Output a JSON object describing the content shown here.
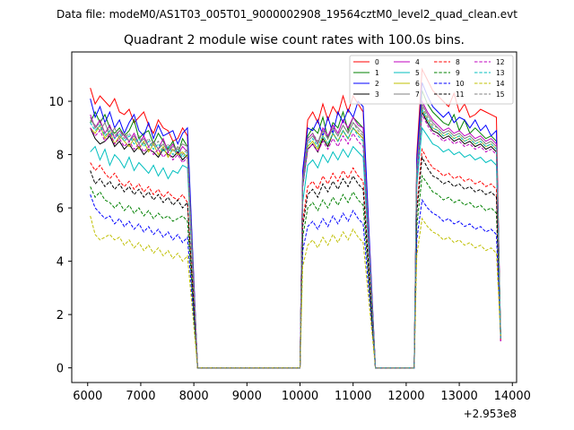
{
  "header": {
    "suptitle": "Data file: modeM0/AS1T03_005T01_9000002908_19564cztM0_level2_quad_clean.evt"
  },
  "chart_data": {
    "type": "line",
    "title": "Quadrant 2 module wise count rates with 100.0s bins.",
    "xlabel": "",
    "ylabel": "",
    "x_offset_label": "+2.953e8",
    "xlim": [
      5700,
      14080
    ],
    "ylim": [
      -0.55,
      11.85
    ],
    "x_ticks": [
      6000,
      7000,
      8000,
      9000,
      10000,
      11000,
      12000,
      13000,
      14000
    ],
    "y_ticks": [
      0,
      2,
      4,
      6,
      8,
      10
    ],
    "legend_location": "upper right",
    "legend_columns": 4,
    "segments": [
      {
        "start": 6050,
        "count": 21,
        "step": 91.5
      },
      {
        "start": 10050,
        "count": 13,
        "step": 95
      },
      {
        "start": 12200,
        "count": 16,
        "step": 100
      }
    ],
    "zero_gaps": [
      {
        "x": [
          8070,
          8250,
          10000
        ]
      },
      {
        "x": [
          11420,
          11600,
          12150
        ]
      }
    ],
    "series": [
      {
        "name": "0",
        "color": "#ff0000",
        "dash": "solid",
        "segA": [
          10.5,
          9.9,
          10.2,
          10.0,
          9.8,
          10.1,
          9.6,
          9.5,
          9.7,
          9.2,
          9.4,
          9.6,
          9.1,
          8.8,
          9.3,
          9.0,
          8.9,
          8.5,
          8.6,
          9.0,
          8.7
        ],
        "segB": [
          7.2,
          9.3,
          9.6,
          9.2,
          9.9,
          9.3,
          9.8,
          9.5,
          10.2,
          9.6,
          10.2,
          9.9,
          9.6
        ],
        "segC": [
          8.0,
          11.2,
          10.8,
          10.4,
          10.2,
          10.0,
          9.8,
          10.3,
          9.6,
          9.9,
          9.4,
          9.5,
          9.7,
          9.6,
          9.5,
          9.4
        ]
      },
      {
        "name": "1",
        "color": "#008000",
        "dash": "solid",
        "segA": [
          9.2,
          9.6,
          9.2,
          9.5,
          9.0,
          8.8,
          9.0,
          8.7,
          8.9,
          9.3,
          8.6,
          8.8,
          8.9,
          8.4,
          8.8,
          8.5,
          8.2,
          8.5,
          8.0,
          8.6,
          8.3
        ],
        "segB": [
          7.0,
          8.7,
          9.0,
          8.8,
          9.4,
          8.6,
          9.2,
          9.0,
          9.6,
          8.9,
          9.4,
          9.2,
          9.0
        ],
        "segC": [
          7.6,
          10.4,
          9.9,
          9.6,
          9.4,
          9.2,
          9.1,
          9.5,
          8.9,
          9.3,
          8.8,
          9.0,
          8.8,
          8.6,
          8.7,
          8.5
        ]
      },
      {
        "name": "2",
        "color": "#0000ff",
        "dash": "solid",
        "segA": [
          10.1,
          9.4,
          9.8,
          9.2,
          9.6,
          9.0,
          9.3,
          8.8,
          9.2,
          9.5,
          8.9,
          8.7,
          9.2,
          8.6,
          9.1,
          8.7,
          8.8,
          8.9,
          8.4,
          8.8,
          9.0
        ],
        "segB": [
          7.4,
          9.0,
          8.9,
          9.3,
          8.7,
          9.4,
          8.8,
          9.6,
          9.2,
          9.7,
          9.4,
          10.0,
          9.8
        ],
        "segC": [
          7.8,
          10.7,
          10.2,
          9.8,
          9.6,
          9.4,
          9.6,
          9.2,
          9.4,
          9.3,
          9.0,
          9.3,
          8.9,
          9.1,
          8.7,
          8.9
        ]
      },
      {
        "name": "3",
        "color": "#000000",
        "dash": "solid",
        "segA": [
          9.0,
          8.6,
          8.4,
          8.5,
          8.7,
          8.3,
          8.5,
          8.2,
          8.4,
          8.1,
          8.3,
          8.0,
          8.2,
          8.1,
          7.9,
          8.2,
          8.0,
          7.9,
          8.1,
          7.8,
          8.0
        ],
        "segB": [
          6.8,
          8.2,
          8.4,
          8.1,
          8.6,
          8.3,
          8.8,
          8.5,
          8.9,
          8.6,
          9.0,
          8.8,
          8.6
        ],
        "segC": [
          7.2,
          9.6,
          9.2,
          8.9,
          8.8,
          8.6,
          8.7,
          8.5,
          8.6,
          8.4,
          8.5,
          8.3,
          8.4,
          8.2,
          8.3,
          8.1
        ]
      },
      {
        "name": "4",
        "color": "#bf00bf",
        "dash": "solid",
        "segA": [
          9.5,
          9.0,
          9.3,
          8.8,
          9.1,
          8.6,
          8.9,
          8.7,
          8.5,
          8.8,
          8.4,
          8.7,
          8.3,
          8.5,
          8.2,
          8.6,
          8.1,
          8.4,
          8.0,
          8.3,
          8.1
        ],
        "segB": [
          7.1,
          8.6,
          8.8,
          8.4,
          9.0,
          8.7,
          9.1,
          8.8,
          9.3,
          9.0,
          9.4,
          9.1,
          9.0
        ],
        "segC": [
          7.5,
          10.0,
          9.6,
          9.3,
          9.1,
          8.9,
          9.0,
          8.8,
          8.9,
          8.7,
          8.8,
          8.6,
          8.7,
          8.5,
          8.6,
          8.4
        ]
      },
      {
        "name": "5",
        "color": "#00bfbf",
        "dash": "solid",
        "segA": [
          8.1,
          8.3,
          7.8,
          8.2,
          7.6,
          8.0,
          7.8,
          7.5,
          7.9,
          7.4,
          7.7,
          7.5,
          7.3,
          7.6,
          7.2,
          7.5,
          7.1,
          7.4,
          7.3,
          7.6,
          7.5
        ],
        "segB": [
          6.2,
          7.6,
          7.8,
          7.5,
          8.0,
          7.7,
          8.1,
          7.8,
          8.2,
          7.9,
          8.3,
          8.1,
          7.9
        ],
        "segC": [
          6.8,
          9.0,
          8.7,
          8.4,
          8.3,
          8.1,
          8.2,
          8.0,
          8.1,
          7.9,
          8.0,
          7.8,
          7.9,
          7.7,
          7.8,
          7.6
        ]
      },
      {
        "name": "6",
        "color": "#bfbf00",
        "dash": "solid",
        "segA": [
          9.0,
          8.8,
          9.1,
          8.6,
          8.9,
          8.4,
          8.7,
          8.5,
          8.3,
          8.6,
          8.2,
          8.5,
          8.1,
          8.4,
          8.0,
          8.3,
          7.9,
          8.2,
          8.0,
          8.1,
          7.9
        ],
        "segB": [
          6.9,
          8.3,
          8.5,
          8.2,
          8.7,
          8.4,
          8.8,
          8.5,
          8.9,
          8.6,
          9.0,
          8.8,
          8.6
        ],
        "segC": [
          7.3,
          9.7,
          9.3,
          9.0,
          8.9,
          8.7,
          8.8,
          8.6,
          8.7,
          8.5,
          8.6,
          8.4,
          8.5,
          8.3,
          8.4,
          8.2
        ]
      },
      {
        "name": "7",
        "color": "#808080",
        "dash": "solid",
        "segA": [
          9.3,
          9.1,
          8.9,
          9.2,
          8.7,
          9.0,
          8.6,
          8.8,
          8.5,
          8.7,
          8.4,
          8.6,
          8.3,
          8.5,
          8.2,
          8.4,
          8.1,
          8.3,
          8.2,
          8.4,
          8.3
        ],
        "segB": [
          7.0,
          8.5,
          8.7,
          8.4,
          8.9,
          8.6,
          9.0,
          8.7,
          9.1,
          8.8,
          9.2,
          9.0,
          8.8
        ],
        "segC": [
          7.4,
          9.9,
          9.5,
          9.2,
          9.0,
          8.8,
          8.9,
          8.7,
          8.8,
          8.6,
          8.7,
          8.5,
          8.6,
          8.4,
          8.5,
          8.3
        ]
      },
      {
        "name": "8",
        "color": "#ff0000",
        "dash": "dashed",
        "segA": [
          7.7,
          7.4,
          7.6,
          7.3,
          7.1,
          7.3,
          7.0,
          6.8,
          7.0,
          6.7,
          6.9,
          6.6,
          6.8,
          6.5,
          6.7,
          6.4,
          6.6,
          6.4,
          6.3,
          6.5,
          6.2
        ],
        "segB": [
          5.5,
          6.8,
          7.0,
          6.7,
          7.2,
          6.9,
          7.3,
          7.0,
          7.4,
          7.1,
          7.5,
          7.2,
          7.0
        ],
        "segC": [
          6.0,
          8.2,
          7.8,
          7.5,
          7.4,
          7.2,
          7.3,
          7.1,
          7.2,
          7.0,
          7.1,
          6.9,
          7.0,
          6.8,
          6.9,
          6.7
        ]
      },
      {
        "name": "9",
        "color": "#008000",
        "dash": "dashed",
        "segA": [
          6.8,
          6.4,
          6.6,
          6.3,
          6.2,
          6.0,
          6.2,
          5.9,
          6.1,
          5.8,
          6.0,
          5.7,
          5.9,
          5.6,
          5.8,
          5.6,
          5.7,
          5.5,
          5.6,
          5.7,
          5.5
        ],
        "segB": [
          4.9,
          6.0,
          6.2,
          5.9,
          6.3,
          6.0,
          6.4,
          6.1,
          6.5,
          6.2,
          6.6,
          6.3,
          6.1
        ],
        "segC": [
          5.3,
          7.2,
          6.9,
          6.6,
          6.5,
          6.3,
          6.4,
          6.2,
          6.3,
          6.1,
          6.2,
          6.0,
          6.1,
          5.9,
          6.0,
          5.8
        ]
      },
      {
        "name": "10",
        "color": "#0000ff",
        "dash": "dashed",
        "segA": [
          6.5,
          6.0,
          5.8,
          5.6,
          5.7,
          5.4,
          5.6,
          5.3,
          5.5,
          5.2,
          5.4,
          5.1,
          5.3,
          5.0,
          5.2,
          4.9,
          5.1,
          4.8,
          5.0,
          4.7,
          4.9
        ],
        "segB": [
          4.4,
          5.3,
          5.5,
          5.2,
          5.6,
          5.3,
          5.7,
          5.4,
          5.8,
          5.5,
          5.9,
          5.6,
          5.4
        ],
        "segC": [
          4.8,
          6.3,
          6.0,
          5.8,
          5.7,
          5.5,
          5.6,
          5.4,
          5.5,
          5.3,
          5.4,
          5.2,
          5.3,
          5.1,
          5.2,
          5.0
        ]
      },
      {
        "name": "11",
        "color": "#000000",
        "dash": "dashed",
        "segA": [
          7.4,
          6.9,
          7.1,
          6.8,
          7.0,
          6.7,
          6.9,
          6.6,
          6.8,
          6.5,
          6.7,
          6.4,
          6.6,
          6.3,
          6.5,
          6.2,
          6.4,
          6.1,
          6.3,
          6.0,
          6.2
        ],
        "segB": [
          5.3,
          6.5,
          6.7,
          6.4,
          6.9,
          6.6,
          7.0,
          6.7,
          7.1,
          6.8,
          7.2,
          6.9,
          6.7
        ],
        "segC": [
          5.8,
          7.9,
          7.5,
          7.2,
          7.1,
          6.9,
          7.0,
          6.8,
          6.9,
          6.7,
          6.8,
          6.6,
          6.7,
          6.5,
          6.6,
          6.4
        ]
      },
      {
        "name": "12",
        "color": "#bf00bf",
        "dash": "dashed",
        "segA": [
          9.0,
          8.7,
          8.9,
          8.5,
          8.8,
          8.4,
          8.6,
          8.3,
          8.5,
          8.2,
          8.4,
          8.1,
          8.3,
          8.0,
          8.2,
          7.9,
          8.1,
          7.8,
          8.0,
          7.7,
          7.9
        ],
        "segB": [
          6.8,
          8.2,
          8.4,
          8.1,
          8.5,
          8.2,
          8.6,
          8.3,
          8.7,
          8.4,
          8.8,
          8.5,
          8.3
        ],
        "segC": [
          7.1,
          9.5,
          9.1,
          8.8,
          8.7,
          8.5,
          8.6,
          8.4,
          8.5,
          8.3,
          8.4,
          8.2,
          8.3,
          8.1,
          8.2,
          8.0
        ]
      },
      {
        "name": "13",
        "color": "#00bfbf",
        "dash": "dashed",
        "segA": [
          9.2,
          8.9,
          9.1,
          8.7,
          8.9,
          8.6,
          8.8,
          8.5,
          8.7,
          8.4,
          8.6,
          8.3,
          8.5,
          8.2,
          8.4,
          8.1,
          8.3,
          8.0,
          8.2,
          7.9,
          8.1
        ],
        "segB": [
          6.9,
          8.4,
          8.6,
          8.3,
          8.7,
          8.4,
          8.8,
          8.5,
          8.9,
          8.6,
          9.0,
          8.7,
          8.5
        ],
        "segC": [
          7.3,
          9.7,
          9.3,
          9.0,
          8.9,
          8.7,
          8.8,
          8.6,
          8.7,
          8.5,
          8.6,
          8.4,
          8.5,
          8.3,
          8.4,
          8.2
        ]
      },
      {
        "name": "14",
        "color": "#bfbf00",
        "dash": "dashed",
        "segA": [
          5.7,
          5.0,
          4.8,
          4.9,
          5.0,
          4.8,
          4.9,
          4.6,
          4.8,
          4.5,
          4.7,
          4.4,
          4.6,
          4.3,
          4.5,
          4.2,
          4.4,
          4.1,
          4.3,
          4.0,
          4.2
        ],
        "segB": [
          3.8,
          4.6,
          4.8,
          4.5,
          4.9,
          4.6,
          5.0,
          4.7,
          5.1,
          4.8,
          5.2,
          4.9,
          4.7
        ],
        "segC": [
          4.2,
          5.6,
          5.3,
          5.1,
          5.0,
          4.8,
          4.9,
          4.7,
          4.8,
          4.6,
          4.7,
          4.5,
          4.6,
          4.4,
          4.5,
          4.3
        ]
      },
      {
        "name": "15",
        "color": "#808080",
        "dash": "dashed",
        "segA": [
          9.4,
          9.0,
          9.2,
          8.8,
          9.0,
          8.7,
          8.9,
          8.6,
          8.8,
          8.5,
          8.7,
          8.4,
          8.6,
          8.3,
          8.5,
          8.2,
          8.4,
          8.1,
          8.3,
          8.0,
          8.2
        ],
        "segB": [
          7.0,
          8.6,
          8.8,
          8.5,
          8.9,
          8.6,
          9.0,
          8.7,
          9.1,
          8.8,
          9.2,
          8.9,
          8.7
        ],
        "segC": [
          7.4,
          9.8,
          9.4,
          9.1,
          9.0,
          8.8,
          8.9,
          8.7,
          8.8,
          8.6,
          8.7,
          8.5,
          8.6,
          8.4,
          8.5,
          8.3
        ]
      }
    ]
  }
}
